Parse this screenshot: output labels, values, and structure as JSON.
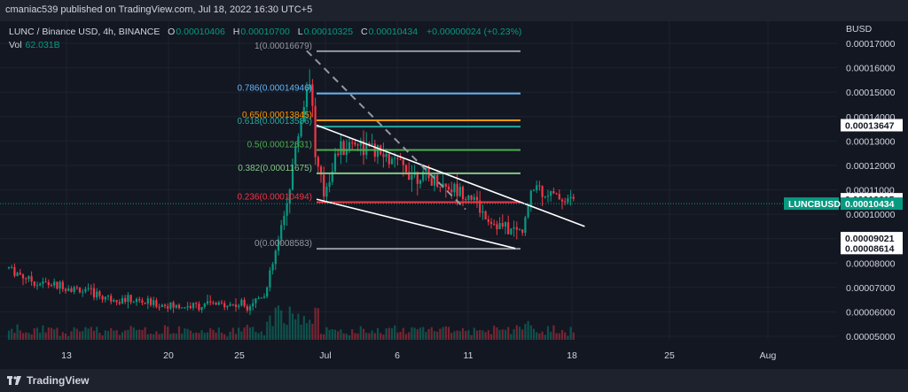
{
  "header": {
    "published": "cmaniac539 published on TradingView.com, Jul 18, 2022 16:30 UTC+5"
  },
  "legend": {
    "symbol": "LUNC / Binance USD, 4h, BINANCE",
    "o_key": "O",
    "o_val": "0.00010406",
    "h_key": "H",
    "h_val": "0.00010700",
    "l_key": "L",
    "l_val": "0.00010325",
    "c_key": "C",
    "c_val": "0.00010434",
    "change": "+0.00000024 (+0.23%)",
    "vol_key": "Vol",
    "vol_val": "62.031B"
  },
  "footer": {
    "brand": "TradingView"
  },
  "colors": {
    "up": "#089981",
    "down": "#f23645",
    "bg": "#131722",
    "grid": "#1e222d"
  },
  "chart_data": {
    "type": "candlestick",
    "currency": "BUSD",
    "ylim": [
      5e-05,
      0.00017
    ],
    "y_ticks": [
      "0.00017000",
      "0.00016000",
      "0.00015000",
      "0.00014000",
      "0.00013000",
      "0.00012000",
      "0.00011000",
      "0.00010000",
      "0.00009000",
      "0.00008000",
      "0.00007000",
      "0.00006000",
      "0.00005000"
    ],
    "x_ticks": [
      "13",
      "20",
      "25",
      "Jul",
      "6",
      "11",
      "18",
      "25",
      "Aug"
    ],
    "fibonacci": [
      {
        "ratio": 1,
        "price": 0.00016679,
        "label": "1(0.00016679)",
        "color": "#9598a1"
      },
      {
        "ratio": 0.786,
        "price": 0.00014946,
        "label": "0.786(0.00014946)",
        "color": "#64b5f6"
      },
      {
        "ratio": 0.65,
        "price": 0.00013845,
        "label": "0.65(0.00013845)",
        "color": "#ff9800"
      },
      {
        "ratio": 0.618,
        "price": 0.00013586,
        "label": "0.618(0.00013586)",
        "color": "#26a69a"
      },
      {
        "ratio": 0.5,
        "price": 0.00012631,
        "label": "0.5(0.00012631)",
        "color": "#4caf50"
      },
      {
        "ratio": 0.382,
        "price": 0.00011675,
        "label": "0.382(0.00011675)",
        "color": "#81c784"
      },
      {
        "ratio": 0.236,
        "price": 0.00010494,
        "label": "0.236(0.00010494)",
        "color": "#f23645"
      },
      {
        "ratio": 0,
        "price": 8.583e-05,
        "label": "0(0.00008583)",
        "color": "#9598a1"
      }
    ],
    "price_labels": [
      {
        "value": 0.00013647,
        "text": "0.00013647",
        "style": "white"
      },
      {
        "value": 0.00010615,
        "text": "0.00010615",
        "style": "white"
      },
      {
        "value": 0.00010434,
        "text": "0.00010434",
        "style": "green",
        "tag": "LUNCBUSD"
      },
      {
        "value": 9.021e-05,
        "text": "0.00009021",
        "style": "white"
      },
      {
        "value": 8.614e-05,
        "text": "0.00008614",
        "style": "white"
      }
    ],
    "trendlines": [
      {
        "from": [
          45,
          0.00013647
        ],
        "to": [
          72,
          9.5e-05
        ],
        "color": "#ffffff"
      },
      {
        "from": [
          45,
          0.00010615
        ],
        "to": [
          65,
          8.6e-05
        ],
        "color": "#ffffff"
      }
    ],
    "dashed_line": {
      "from": [
        44,
        0.000167
      ],
      "to": [
        60,
        0.000102
      ]
    },
    "last_price": 0.00010434
  }
}
